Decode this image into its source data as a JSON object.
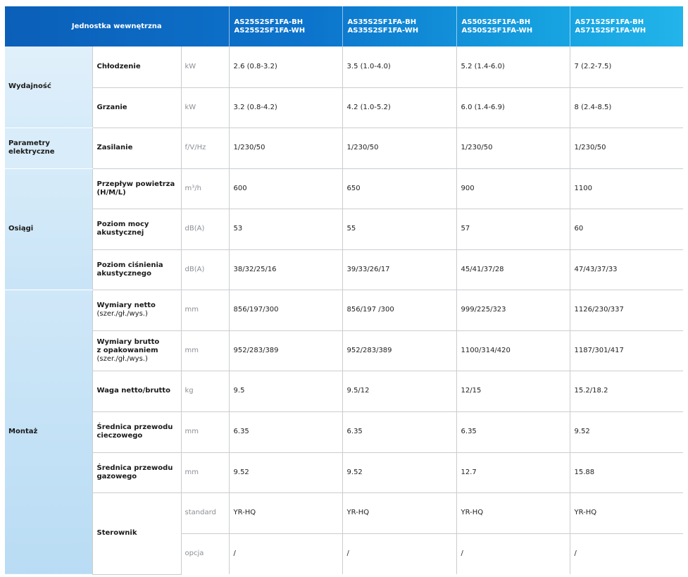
{
  "header": {
    "title": "Jednostka wewnętrzna",
    "models": [
      [
        "AS25S2SF1FA-BH",
        "AS25S2SF1FA-WH"
      ],
      [
        "AS35S2SF1FA-BH",
        "AS35S2SF1FA-WH"
      ],
      [
        "AS50S2SF1FA-BH",
        "AS50S2SF1FA-WH"
      ],
      [
        "AS71S2SF1FA-BH",
        "AS71S2SF1FA-WH"
      ]
    ]
  },
  "colors": {
    "header_start": "#0b5fb8",
    "header_end": "#22b4ea",
    "category_bg": "#d9ecf9",
    "border": "#c9cdd2",
    "unit_text": "#8a8f96"
  },
  "sections": [
    {
      "category": "Wydajność",
      "rows": [
        {
          "param": [
            "Chłodzenie"
          ],
          "unit": "kW",
          "values": [
            "2.6 (0.8-3.2)",
            "3.5 (1.0-4.0)",
            "5.2 (1.4-6.0)",
            "7 (2.2-7.5)"
          ]
        },
        {
          "param": [
            "Grzanie"
          ],
          "unit": "kW",
          "values": [
            "3.2 (0.8-4.2)",
            "4.2 (1.0-5.2)",
            "6.0 (1.4-6.9)",
            "8 (2.4-8.5)"
          ]
        }
      ]
    },
    {
      "category": "Parametry elektryczne",
      "rows": [
        {
          "param": [
            "Zasilanie"
          ],
          "unit": "f/V/Hz",
          "values": [
            "1/230/50",
            "1/230/50",
            "1/230/50",
            "1/230/50"
          ]
        }
      ]
    },
    {
      "category": "Osiągi",
      "rows": [
        {
          "param": [
            "Przepływ powietrza",
            "(H/M/L)"
          ],
          "unit": "m³/h",
          "values": [
            "600",
            "650",
            "900",
            "1100"
          ]
        },
        {
          "param": [
            "Poziom mocy",
            "akustycznej"
          ],
          "unit": "dB(A)",
          "values": [
            "53",
            "55",
            "57",
            "60"
          ]
        },
        {
          "param": [
            "Poziom ciśnienia",
            "akustycznego"
          ],
          "unit": "dB(A)",
          "values": [
            "38/32/25/16",
            "39/33/26/17",
            "45/41/37/28",
            "47/43/37/33"
          ]
        }
      ]
    },
    {
      "category": "Montaż",
      "rows": [
        {
          "param": [
            "Wymiary netto"
          ],
          "sub": "(szer./gł./wys.)",
          "unit": "mm",
          "values": [
            "856/197/300",
            "856/197 /300",
            "999/225/323",
            "1126/230/337"
          ]
        },
        {
          "param": [
            "Wymiary brutto",
            "z opakowaniem"
          ],
          "sub": "(szer./gł./wys.)",
          "unit": "mm",
          "values": [
            "952/283/389",
            "952/283/389",
            "1100/314/420",
            "1187/301/417"
          ]
        },
        {
          "param": [
            "Waga netto/brutto"
          ],
          "unit": "kg",
          "values": [
            "9.5",
            "9.5/12",
            "12/15",
            "15.2/18.2"
          ]
        },
        {
          "param": [
            "Średnica przewodu",
            "cieczowego"
          ],
          "unit": "mm",
          "values": [
            "6.35",
            "6.35",
            "6.35",
            "9.52"
          ]
        },
        {
          "param": [
            "Średnica przewodu",
            "gazowego"
          ],
          "unit": "mm",
          "values": [
            "9.52",
            "9.52",
            "12.7",
            "15.88"
          ]
        },
        {
          "param": [
            "Sterownik"
          ],
          "unit": "standard",
          "values": [
            "YR-HQ",
            "YR-HQ",
            "YR-HQ",
            "YR-HQ"
          ]
        },
        {
          "param": [],
          "unit": "opcja",
          "values": [
            "/",
            "/",
            "/",
            "/"
          ]
        }
      ]
    }
  ]
}
